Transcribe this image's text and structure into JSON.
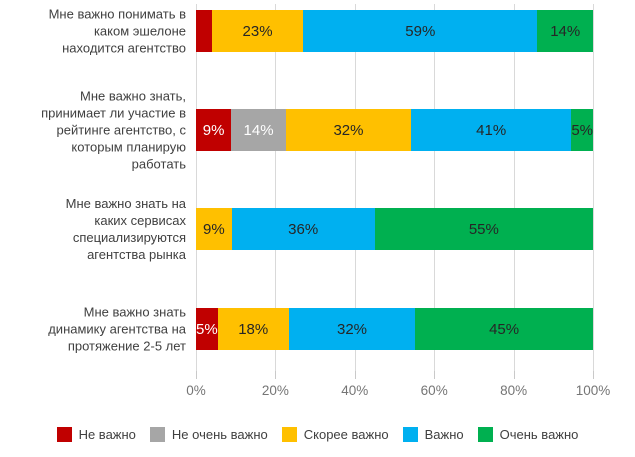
{
  "chart_data": {
    "type": "bar",
    "orientation": "horizontal",
    "stacked_100": true,
    "title": "",
    "xlabel": "",
    "ylabel": "",
    "xlim": [
      0,
      100
    ],
    "grid": true,
    "legend_position": "bottom",
    "x_ticks": [
      "0%",
      "20%",
      "40%",
      "60%",
      "80%",
      "100%"
    ],
    "legend": [
      {
        "key": "not_important",
        "label": "Не важно",
        "color": "#C00000",
        "text_color": "#FFFFFF"
      },
      {
        "key": "not_very_important",
        "label": "Не очень важно",
        "color": "#A6A6A6",
        "text_color": "#FFFFFF"
      },
      {
        "key": "rather_important",
        "label": "Скорее важно",
        "color": "#FFC000",
        "text_color": "#262626"
      },
      {
        "key": "important",
        "label": "Важно",
        "color": "#00B0F0",
        "text_color": "#262626"
      },
      {
        "key": "very_important",
        "label": "Очень важно",
        "color": "#00B050",
        "text_color": "#262626"
      }
    ],
    "categories": [
      "Мне важно понимать в\nкаком эшелоне\nнаходится агентство",
      "Мне важно знать,\nпринимает ли участие в\nрейтинге агентство, с\nкоторым планирую\nработать",
      "Мне важно знать на\nкаких сервисах\nспециализируются\nагентства рынка",
      "Мне важно знать\nдинамику агентства на\nпротяжение 2-5 лет"
    ],
    "rows": [
      {
        "segments": [
          {
            "key": "not_important",
            "value": 4,
            "label": ""
          },
          {
            "key": "rather_important",
            "value": 23,
            "label": "23%"
          },
          {
            "key": "important",
            "value": 59,
            "label": "59%"
          },
          {
            "key": "very_important",
            "value": 14,
            "label": "14%"
          }
        ]
      },
      {
        "segments": [
          {
            "key": "not_important",
            "value": 9,
            "label": "9%"
          },
          {
            "key": "not_very_important",
            "value": 14,
            "label": "14%"
          },
          {
            "key": "rather_important",
            "value": 32,
            "label": "32%"
          },
          {
            "key": "important",
            "value": 41,
            "label": "41%"
          },
          {
            "key": "very_important",
            "value": 5,
            "label": "5%"
          }
        ]
      },
      {
        "segments": [
          {
            "key": "rather_important",
            "value": 9,
            "label": "9%"
          },
          {
            "key": "important",
            "value": 36,
            "label": "36%"
          },
          {
            "key": "very_important",
            "value": 55,
            "label": "55%"
          }
        ]
      },
      {
        "segments": [
          {
            "key": "not_important",
            "value": 5,
            "label": "5%"
          },
          {
            "key": "rather_important",
            "value": 18,
            "label": "18%"
          },
          {
            "key": "important",
            "value": 32,
            "label": "32%"
          },
          {
            "key": "very_important",
            "value": 45,
            "label": "45%"
          }
        ]
      }
    ]
  },
  "layout_note": ""
}
